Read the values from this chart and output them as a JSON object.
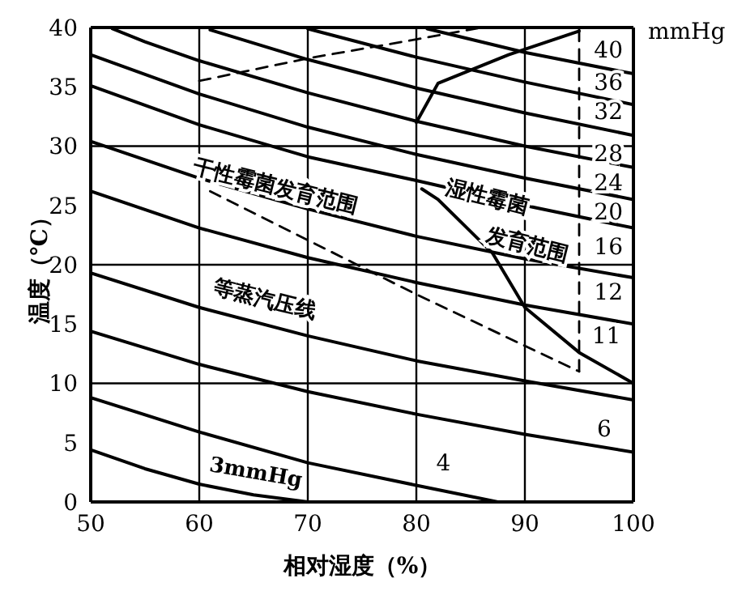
{
  "chart_data": {
    "type": "line",
    "xlabel": "相对湿度（%）",
    "ylabel": "温度（℃）",
    "xlim": [
      50,
      100
    ],
    "xticks": [
      50,
      60,
      70,
      80,
      90,
      100
    ],
    "ylim": [
      0,
      40
    ],
    "yticks": [
      0,
      5,
      10,
      15,
      20,
      25,
      30,
      35,
      40
    ],
    "grid": "x",
    "marker": "none",
    "line_style": "solid",
    "ref_lines": [
      {
        "axis": "y",
        "value": 10,
        "color": "#000000"
      },
      {
        "axis": "y",
        "value": 20,
        "color": "#000000"
      },
      {
        "axis": "y",
        "value": 30,
        "color": "#000000"
      }
    ],
    "series": [
      {
        "color": "#000000",
        "x": [
          50,
          55,
          60,
          65,
          70
        ],
        "values": [
          4.4,
          2.8,
          1.5,
          0.6,
          0
        ]
      },
      {
        "color": "#000000",
        "x": [
          50,
          60,
          70,
          80,
          87.5
        ],
        "values": [
          8.8,
          5.9,
          3.3,
          1.4,
          0
        ]
      },
      {
        "color": "#000000",
        "x": [
          50,
          60,
          70,
          80,
          90,
          100
        ],
        "values": [
          14.4,
          11.6,
          9.3,
          7.4,
          5.7,
          4.2
        ]
      },
      {
        "color": "#000000",
        "x": [
          50,
          60,
          70,
          80,
          90,
          100
        ],
        "values": [
          19.3,
          16.4,
          14,
          11.9,
          10.2,
          8.6
        ]
      },
      {
        "color": "#000000",
        "x": [
          50,
          60,
          70,
          80,
          90,
          100
        ],
        "values": [
          26.2,
          23.1,
          20.6,
          18.5,
          16.6,
          15
        ]
      },
      {
        "color": "#000000",
        "x": [
          50,
          60,
          70,
          80,
          90,
          100
        ],
        "values": [
          30.4,
          27.3,
          24.7,
          22.4,
          20.5,
          18.9
        ]
      },
      {
        "color": "#000000",
        "x": [
          50,
          60,
          70,
          80,
          90,
          100
        ],
        "values": [
          35.1,
          31.8,
          29.1,
          27.1,
          25,
          23.1
        ]
      },
      {
        "color": "#000000",
        "x": [
          50,
          60,
          70,
          80,
          90,
          100
        ],
        "values": [
          37.7,
          34.4,
          31.6,
          29.3,
          27.3,
          25.5
        ]
      },
      {
        "color": "#000000",
        "x": [
          52,
          55,
          60,
          70,
          80,
          90,
          100
        ],
        "values": [
          39.9,
          38.8,
          37.2,
          34.5,
          32.1,
          30,
          28.2
        ]
      },
      {
        "color": "#000000",
        "x": [
          61,
          70,
          80,
          90,
          100
        ],
        "values": [
          39.8,
          37.3,
          34.9,
          32.8,
          30.9
        ]
      },
      {
        "color": "#000000",
        "x": [
          70,
          80,
          90,
          100
        ],
        "values": [
          39.9,
          37.5,
          35.4,
          33.5
        ]
      },
      {
        "color": "#000000",
        "x": [
          81,
          90,
          100
        ],
        "values": [
          39.9,
          37.9,
          36.1
        ]
      },
      {
        "color": "#000000",
        "line_style": "dashed",
        "x": [
          60,
          70,
          80,
          86
        ],
        "values": [
          35.5,
          37.4,
          39,
          40
        ]
      },
      {
        "color": "#000000",
        "line_style": "dashed",
        "x": [
          61,
          80,
          95
        ],
        "values": [
          26.2,
          17.5,
          11
        ]
      },
      {
        "color": "#000000",
        "line_style": "dashed",
        "x": [
          95,
          95
        ],
        "values": [
          11,
          40
        ]
      },
      {
        "color": "#000000",
        "x": [
          80,
          82,
          88.5,
          95
        ],
        "values": [
          32,
          35.3,
          37.7,
          39.7
        ]
      },
      {
        "color": "#000000",
        "x": [
          80.5,
          82,
          87,
          90,
          95,
          100
        ],
        "values": [
          26.4,
          25.5,
          21,
          16.4,
          12.6,
          10
        ]
      }
    ],
    "annotations": [
      "干性霉菌发育范围",
      "湿性霉菌",
      "发育范围",
      "等蒸汽压线",
      "3mmHg",
      "4",
      "6",
      "11",
      "12",
      "16",
      "20",
      "24",
      "28",
      "32",
      "36",
      "40",
      "mmHg"
    ]
  }
}
